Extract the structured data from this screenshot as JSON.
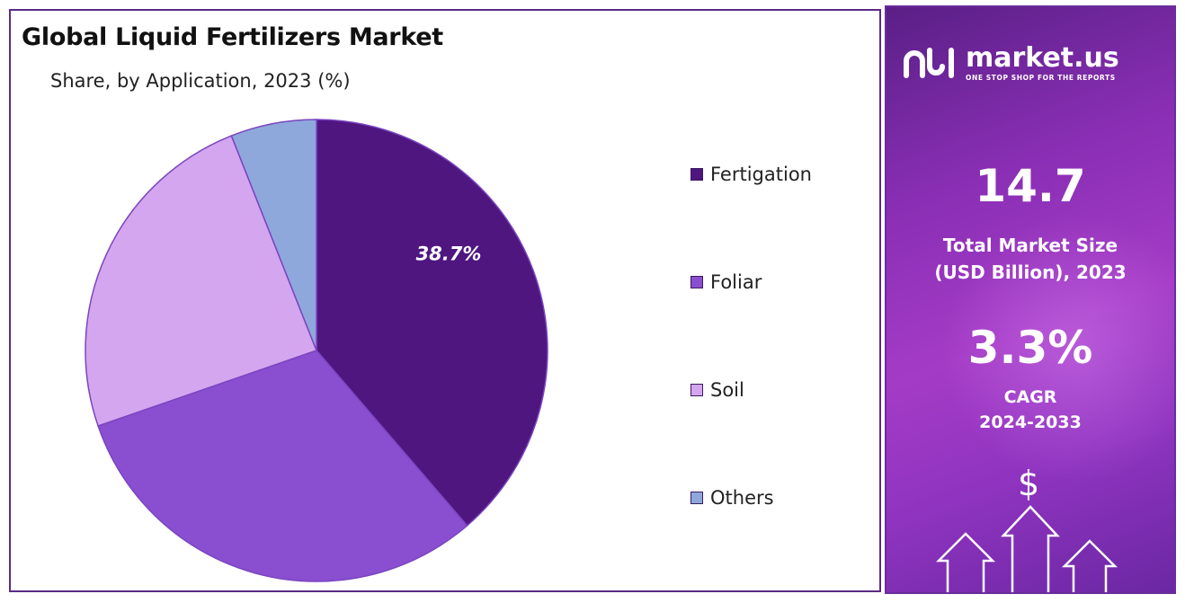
{
  "chart_data": {
    "type": "pie",
    "title": "Global Liquid Fertilizers Market",
    "subtitle": "Share, by Application, 2023 (%)",
    "categories": [
      "Fertigation",
      "Foliar",
      "Soil",
      "Others"
    ],
    "values": [
      38.7,
      31.0,
      24.3,
      6.0
    ],
    "colors": [
      "#4f1680",
      "#8a4fd0",
      "#d4a6ef",
      "#8fa8dc"
    ],
    "data_labels": [
      "38.7%",
      "",
      "",
      ""
    ],
    "legend_position": "right"
  },
  "side": {
    "brand": "market.us",
    "tagline": "ONE STOP SHOP FOR THE REPORTS",
    "market_size_value": "14.7",
    "market_size_label_1": "Total Market Size",
    "market_size_label_2": "(USD Billion), 2023",
    "cagr_value": "3.3%",
    "cagr_label_1": "CAGR",
    "cagr_label_2": "2024-2033",
    "dollar_icon": "$"
  }
}
